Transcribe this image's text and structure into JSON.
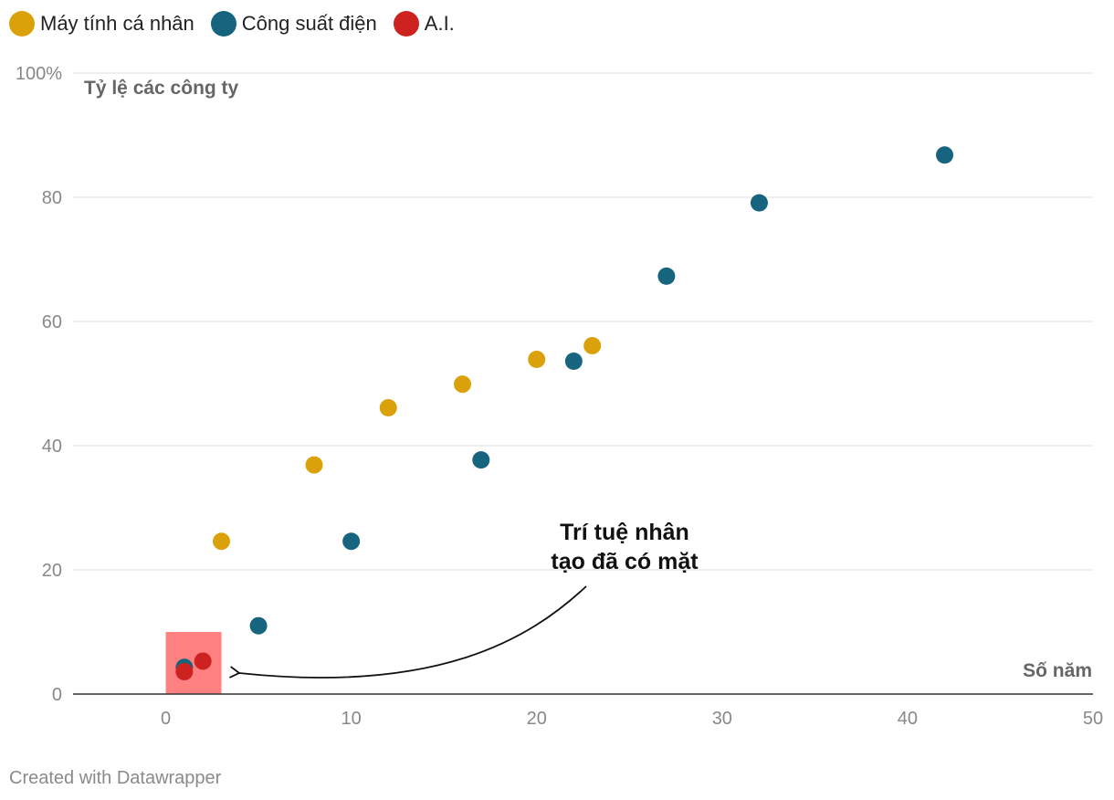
{
  "chart_data": {
    "type": "scatter",
    "title": "",
    "ylabel": "Tỷ lệ các công ty",
    "xlabel": "Số năm",
    "xlim": [
      -5,
      50
    ],
    "ylim": [
      0,
      100
    ],
    "xticks": [
      0,
      10,
      20,
      30,
      40,
      50
    ],
    "yticks": [
      0,
      20,
      40,
      60,
      80,
      100
    ],
    "xtick_labels": [
      "0",
      "10",
      "20",
      "30",
      "40",
      "50"
    ],
    "ytick_labels": [
      "0",
      "20",
      "40",
      "60",
      "80",
      "100%"
    ],
    "grid": true,
    "legend_position": "top-left",
    "series": [
      {
        "name": "Máy tính cá nhân",
        "color": "#DBA10A",
        "points": [
          [
            3,
            24.6
          ],
          [
            8,
            36.9
          ],
          [
            12,
            46.1
          ],
          [
            16,
            49.9
          ],
          [
            20,
            53.9
          ],
          [
            23,
            56.1
          ]
        ]
      },
      {
        "name": "Công suất điện",
        "color": "#17647E",
        "points": [
          [
            1,
            4.3
          ],
          [
            5,
            11.0
          ],
          [
            10,
            24.6
          ],
          [
            17,
            37.7
          ],
          [
            22,
            53.6
          ],
          [
            27,
            67.3
          ],
          [
            32,
            79.1
          ],
          [
            42,
            86.8
          ]
        ]
      },
      {
        "name": "A.I.",
        "color": "#CE2220",
        "points": [
          [
            1,
            3.6
          ],
          [
            2,
            5.3
          ]
        ]
      }
    ],
    "annotations": [
      {
        "text_lines": [
          "Trí tuệ nhân",
          "tạo đã có mặt"
        ]
      }
    ],
    "highlight_box": {
      "x_range": [
        0,
        3
      ],
      "y_range": [
        0,
        10
      ],
      "color": "#FF8080"
    }
  },
  "footer": {
    "credit": "Created with Datawrapper"
  }
}
